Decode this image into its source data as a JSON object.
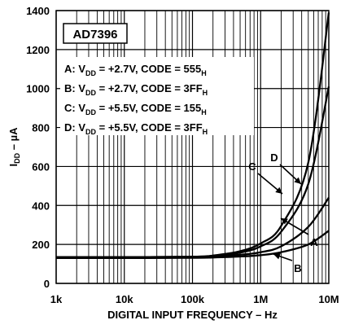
{
  "chart_data": {
    "type": "line",
    "chart_label": "AD7396",
    "xlabel": "DIGITAL INPUT FREQUENCY – Hz",
    "ylabel": "I",
    "ylabel_sub": "DD",
    "ylabel_unit": " – µA",
    "x_scale": "log",
    "xlim": [
      1000,
      10000000
    ],
    "ylim": [
      0,
      1400
    ],
    "x_ticks": [
      1000,
      10000,
      100000,
      1000000,
      10000000
    ],
    "x_tick_labels": [
      "1k",
      "10k",
      "100k",
      "1M",
      "10M"
    ],
    "y_ticks": [
      0,
      200,
      400,
      600,
      800,
      1000,
      1200,
      1400
    ],
    "y_tick_labels": [
      "0",
      "200",
      "400",
      "600",
      "800",
      "1000",
      "1200",
      "1400"
    ],
    "grid": true,
    "legend_position": "top-left",
    "legend": [
      {
        "key": "A",
        "text": "A:  V",
        "sub": "DD",
        "rest": " = +2.7V, CODE = 555",
        "end_sub": "H"
      },
      {
        "key": "B",
        "text": "B:  V",
        "sub": "DD",
        "rest": " = +2.7V, CODE = 3FF",
        "end_sub": "H"
      },
      {
        "key": "C",
        "text": "C:  V",
        "sub": "DD",
        "rest": " = +5.5V, CODE = 155",
        "end_sub": "H"
      },
      {
        "key": "D",
        "text": "D:  V",
        "sub": "DD",
        "rest": " = +5.5V, CODE = 3FF",
        "end_sub": "H"
      }
    ],
    "series": [
      {
        "name": "A",
        "x": [
          1000,
          10000,
          100000,
          200000,
          500000,
          1000000,
          2000000,
          5000000,
          10000000
        ],
        "y": [
          135,
          135,
          136,
          139,
          147,
          160,
          190,
          290,
          440
        ]
      },
      {
        "name": "B",
        "x": [
          1000,
          10000,
          100000,
          200000,
          500000,
          1000000,
          2000000,
          5000000,
          10000000
        ],
        "y": [
          130,
          130,
          131,
          133,
          138,
          145,
          160,
          200,
          270
        ]
      },
      {
        "name": "C",
        "x": [
          1000,
          10000,
          100000,
          200000,
          500000,
          1000000,
          2000000,
          5000000,
          10000000
        ],
        "y": [
          135,
          135,
          137,
          143,
          165,
          205,
          295,
          620,
          1390
        ]
      },
      {
        "name": "D",
        "x": [
          1000,
          10000,
          100000,
          200000,
          500000,
          1000000,
          2000000,
          5000000,
          10000000
        ],
        "y": [
          135,
          135,
          136,
          141,
          158,
          190,
          265,
          510,
          1010
        ]
      }
    ]
  }
}
